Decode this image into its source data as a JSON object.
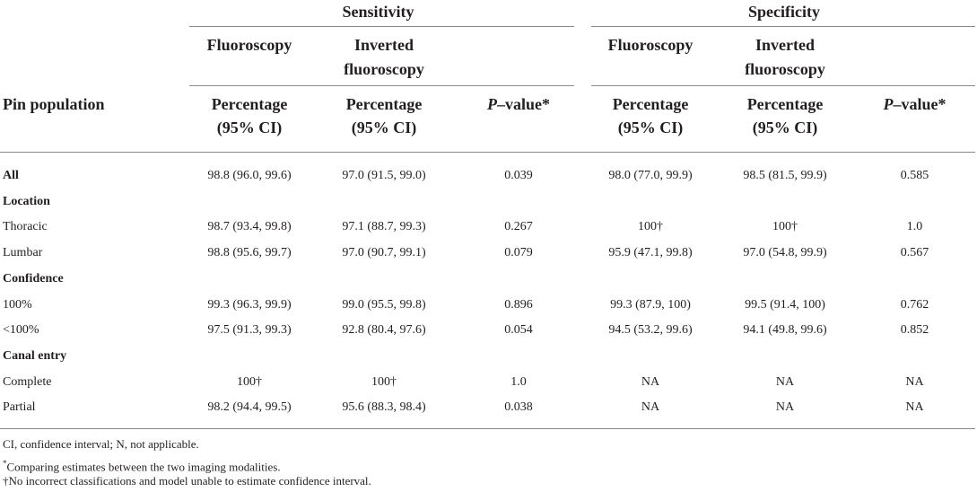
{
  "header": {
    "group_sensitivity": "Sensitivity",
    "group_specificity": "Specificity",
    "pin_population": "Pin population",
    "sens_fluoroscopy": "Fluoroscopy",
    "sens_inverted_line1": "Inverted",
    "sens_inverted_line2": "fluoroscopy",
    "spec_fluoroscopy": "Fluoroscopy",
    "spec_inverted_line1": "Inverted",
    "spec_inverted_line2": "fluoroscopy",
    "percentage_line1": "Percentage",
    "percentage_line2": "(95% CI)",
    "pvalue_p": "P",
    "pvalue_rest": "–value*"
  },
  "rows": [
    {
      "label": "All",
      "bold": true,
      "values": [
        "98.8 (96.0, 99.6)",
        "97.0 (91.5, 99.0)",
        "0.039",
        "98.0 (77.0, 99.9)",
        "98.5 (81.5, 99.9)",
        "0.585"
      ]
    },
    {
      "label": "Location",
      "bold": true,
      "values": []
    },
    {
      "label": "Thoracic",
      "bold": false,
      "values": [
        "98.7 (93.4, 99.8)",
        "97.1 (88.7, 99.3)",
        "0.267",
        "100†",
        "100†",
        "1.0"
      ]
    },
    {
      "label": "Lumbar",
      "bold": false,
      "values": [
        "98.8 (95.6, 99.7)",
        "97.0 (90.7, 99.1)",
        "0.079",
        "95.9 (47.1, 99.8)",
        "97.0 (54.8, 99.9)",
        "0.567"
      ]
    },
    {
      "label": "Confidence",
      "bold": true,
      "values": []
    },
    {
      "label": "100%",
      "bold": false,
      "values": [
        "99.3 (96.3, 99.9)",
        "99.0 (95.5, 99.8)",
        "0.896",
        "99.3 (87.9, 100)",
        "99.5 (91.4, 100)",
        "0.762"
      ]
    },
    {
      "label": "<100%",
      "bold": false,
      "values": [
        "97.5 (91.3, 99.3)",
        "92.8 (80.4, 97.6)",
        "0.054",
        "94.5 (53.2, 99.6)",
        "94.1 (49.8, 99.6)",
        "0.852"
      ]
    },
    {
      "label": "Canal entry",
      "bold": true,
      "values": []
    },
    {
      "label": "Complete",
      "bold": false,
      "values": [
        "100†",
        "100†",
        "1.0",
        "NA",
        "NA",
        "NA"
      ]
    },
    {
      "label": "Partial",
      "bold": false,
      "values": [
        "98.2 (94.4, 99.5)",
        "95.6 (88.3, 98.4)",
        "0.038",
        "NA",
        "NA",
        "NA"
      ]
    }
  ],
  "footnotes": {
    "abbrev": "CI, confidence interval; N, not applicable.",
    "star_mark": "*",
    "star_text": "Comparing estimates between the two imaging modalities.",
    "dagger": "†No incorrect classifications and model unable to estimate confidence interval."
  }
}
